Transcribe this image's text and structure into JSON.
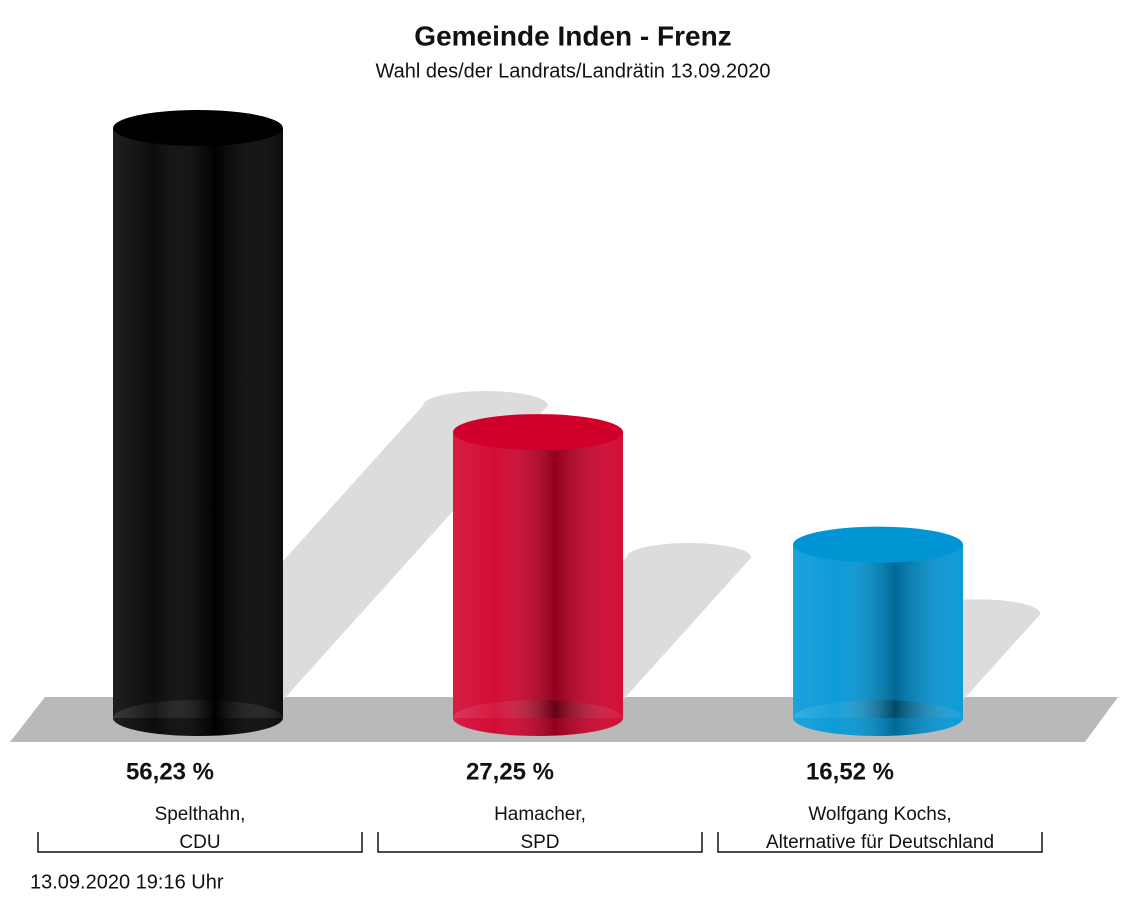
{
  "chart_data": {
    "type": "bar",
    "title": "Gemeinde Inden - Frenz",
    "subtitle": "Wahl des/der Landrats/Landrätin 13.09.2020",
    "categories": [
      [
        "Spelthahn,",
        "CDU"
      ],
      [
        "Hamacher,",
        "SPD"
      ],
      [
        "Wolfgang Kochs,",
        "Alternative für Deutschland"
      ]
    ],
    "values": [
      56.23,
      27.25,
      16.52
    ],
    "value_labels": [
      "56,23 %",
      "27,25 %",
      "16,52 %"
    ],
    "colors": [
      "#000000",
      "#d0002a",
      "#0096d6"
    ],
    "footnote": "13.09.2020 19:16 Uhr"
  }
}
